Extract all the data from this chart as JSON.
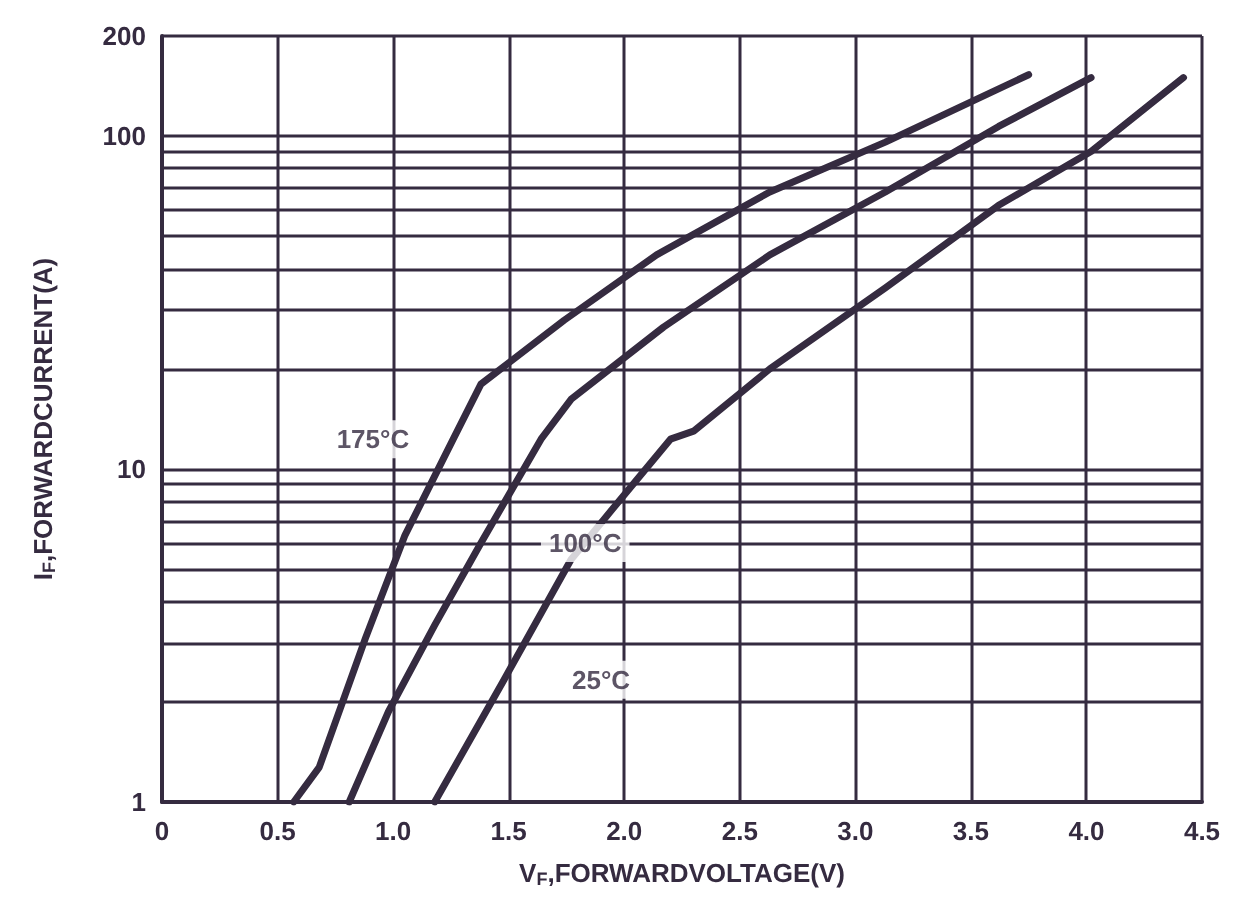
{
  "chart_data": {
    "type": "line",
    "xlabel": "V$_{F}$,FORWARDVOLTAGE(V)",
    "ylabel": "I$_{F}$,FORWARDCURRENT(A)",
    "log": "y",
    "grid": true,
    "marker": "none",
    "line_style": "solid",
    "xlim": [
      0,
      4.5
    ],
    "xticks": [
      0,
      0.5,
      {
        "value": 1,
        "label": "1.0"
      },
      1.5,
      {
        "value": 2,
        "label": "2.0"
      },
      2.5,
      {
        "value": 3,
        "label": "3.0"
      },
      3.5,
      {
        "value": 4,
        "label": "4.0"
      },
      4.5
    ],
    "ylim": [
      1,
      200
    ],
    "yticks": [
      1,
      {
        "value": 2,
        "label": null
      },
      {
        "value": 3,
        "label": null
      },
      {
        "value": 4,
        "label": null
      },
      {
        "value": 5,
        "label": null
      },
      {
        "value": 6,
        "label": null
      },
      {
        "value": 7,
        "label": null
      },
      {
        "value": 8,
        "label": null
      },
      {
        "value": 9,
        "label": null
      },
      10,
      {
        "value": 20,
        "label": null
      },
      {
        "value": 30,
        "label": null
      },
      {
        "value": 40,
        "label": null
      },
      {
        "value": 50,
        "label": null
      },
      {
        "value": 60,
        "label": null
      },
      {
        "value": 70,
        "label": null
      },
      {
        "value": 80,
        "label": null
      },
      {
        "value": 90,
        "label": null
      },
      100,
      200
    ],
    "series": [
      {
        "color": "#352b40",
        "x": [
          0.57,
          0.68,
          0.88,
          1.05,
          1.26,
          1.38,
          1.74,
          2.14,
          2.63,
          3.13,
          3.75
        ],
        "values": [
          1,
          1.27,
          3.1,
          6.3,
          12.3,
          18,
          28,
          44,
          68,
          96,
          153
        ]
      },
      {
        "color": "#352b40",
        "x": [
          0.81,
          0.98,
          1.18,
          1.38,
          1.64,
          1.77,
          2.17,
          2.63,
          3.13,
          3.62,
          4.02
        ],
        "values": [
          1,
          1.87,
          3.4,
          6.0,
          12.3,
          16.2,
          26.7,
          44,
          68,
          107,
          150
        ]
      },
      {
        "color": "#352b40",
        "x": [
          1.18,
          1.48,
          1.77,
          1.97,
          2.2,
          2.3,
          2.63,
          3.13,
          3.62,
          4.02,
          4.42
        ],
        "values": [
          1,
          2.33,
          5.35,
          7.9,
          12.3,
          13,
          20,
          35,
          62,
          90,
          150
        ]
      }
    ],
    "annotations": [
      {
        "text": "175°C",
        "x": 1.26,
        "y": 12.3
      },
      {
        "text": "100°C",
        "x": 1.38,
        "y": 6.0
      },
      {
        "text": "25°C",
        "x": 1.48,
        "y": 2.33
      }
    ]
  }
}
